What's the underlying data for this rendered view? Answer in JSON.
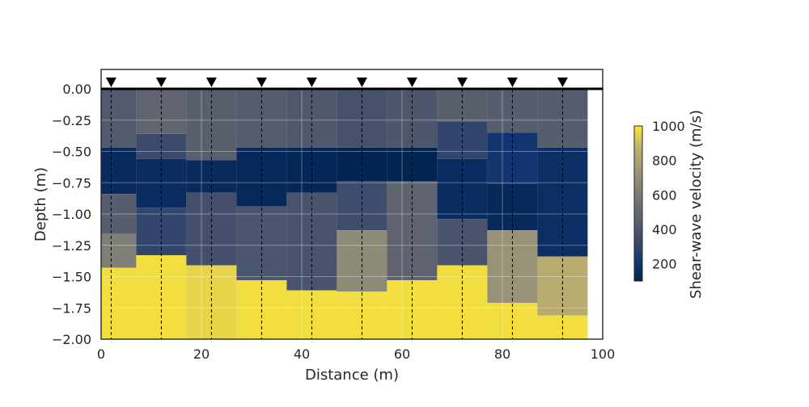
{
  "chart_data": {
    "type": "heatmap",
    "title": "",
    "xlabel": "Distance (m)",
    "ylabel": "Depth (m)",
    "xlim": [
      0,
      100
    ],
    "ylim": [
      -2.0,
      0.0
    ],
    "x_ticks": [
      0,
      20,
      40,
      60,
      80,
      100
    ],
    "x_tick_labels": [
      "0",
      "20",
      "40",
      "60",
      "80",
      "100"
    ],
    "y_ticks": [
      0.0,
      -0.25,
      -0.5,
      -0.75,
      -1.0,
      -1.25,
      -1.5,
      -1.75,
      -2.0
    ],
    "y_tick_labels": [
      "0.00",
      "−0.25",
      "−0.50",
      "−0.75",
      "−1.00",
      "−1.25",
      "−1.50",
      "−1.75",
      "−2.00"
    ],
    "grid": true,
    "colormap": "cividis",
    "colorbar": {
      "label": "Shear-wave velocity (m/s)",
      "range": [
        100,
        1000
      ],
      "ticks": [
        200,
        400,
        600,
        800,
        1000
      ],
      "tick_labels": [
        "200",
        "400",
        "600",
        "800",
        "1000"
      ]
    },
    "column_width_m": 10,
    "stations": {
      "marker": "▼",
      "x": [
        2,
        12,
        22,
        32,
        42,
        52,
        62,
        72,
        82,
        92
      ]
    },
    "profiles": [
      {
        "x_center": 2,
        "layers": [
          {
            "top": 0.0,
            "bottom": -0.47,
            "vs": 420
          },
          {
            "top": -0.47,
            "bottom": -0.84,
            "vs": 150
          },
          {
            "top": -0.84,
            "bottom": -1.16,
            "vs": 440
          },
          {
            "top": -1.16,
            "bottom": -1.43,
            "vs": 620
          },
          {
            "top": -1.43,
            "bottom": -2.0,
            "vs": 980
          }
        ]
      },
      {
        "x_center": 12,
        "layers": [
          {
            "top": 0.0,
            "bottom": -0.36,
            "vs": 480
          },
          {
            "top": -0.36,
            "bottom": -0.56,
            "vs": 330
          },
          {
            "top": -0.56,
            "bottom": -0.95,
            "vs": 160
          },
          {
            "top": -0.95,
            "bottom": -1.33,
            "vs": 300
          },
          {
            "top": -1.33,
            "bottom": -2.0,
            "vs": 980
          }
        ]
      },
      {
        "x_center": 22,
        "layers": [
          {
            "top": 0.0,
            "bottom": -0.57,
            "vs": 450
          },
          {
            "top": -0.57,
            "bottom": -0.83,
            "vs": 150
          },
          {
            "top": -0.83,
            "bottom": -1.41,
            "vs": 360
          },
          {
            "top": -1.41,
            "bottom": -2.0,
            "vs": 960
          }
        ]
      },
      {
        "x_center": 32,
        "layers": [
          {
            "top": 0.0,
            "bottom": -0.47,
            "vs": 430
          },
          {
            "top": -0.47,
            "bottom": -0.94,
            "vs": 140
          },
          {
            "top": -0.94,
            "bottom": -1.53,
            "vs": 390
          },
          {
            "top": -1.53,
            "bottom": -2.0,
            "vs": 980
          }
        ]
      },
      {
        "x_center": 42,
        "layers": [
          {
            "top": 0.0,
            "bottom": -0.47,
            "vs": 410
          },
          {
            "top": -0.47,
            "bottom": -0.83,
            "vs": 130
          },
          {
            "top": -0.83,
            "bottom": -1.61,
            "vs": 380
          },
          {
            "top": -1.61,
            "bottom": -2.0,
            "vs": 980
          }
        ]
      },
      {
        "x_center": 52,
        "layers": [
          {
            "top": 0.0,
            "bottom": -0.47,
            "vs": 370
          },
          {
            "top": -0.47,
            "bottom": -0.74,
            "vs": 110
          },
          {
            "top": -0.74,
            "bottom": -1.13,
            "vs": 340
          },
          {
            "top": -1.13,
            "bottom": -1.62,
            "vs": 680
          },
          {
            "top": -1.62,
            "bottom": -2.0,
            "vs": 980
          }
        ]
      },
      {
        "x_center": 62,
        "layers": [
          {
            "top": 0.0,
            "bottom": -0.47,
            "vs": 400
          },
          {
            "top": -0.47,
            "bottom": -0.74,
            "vs": 110
          },
          {
            "top": -0.74,
            "bottom": -1.53,
            "vs": 470
          },
          {
            "top": -1.53,
            "bottom": -2.0,
            "vs": 980
          }
        ]
      },
      {
        "x_center": 72,
        "layers": [
          {
            "top": 0.0,
            "bottom": -0.26,
            "vs": 450
          },
          {
            "top": -0.26,
            "bottom": -0.56,
            "vs": 300
          },
          {
            "top": -0.56,
            "bottom": -1.04,
            "vs": 160
          },
          {
            "top": -1.04,
            "bottom": -1.41,
            "vs": 380
          },
          {
            "top": -1.41,
            "bottom": -2.0,
            "vs": 980
          }
        ]
      },
      {
        "x_center": 82,
        "layers": [
          {
            "top": 0.0,
            "bottom": -0.35,
            "vs": 440
          },
          {
            "top": -0.35,
            "bottom": -0.76,
            "vs": 210
          },
          {
            "top": -0.76,
            "bottom": -1.13,
            "vs": 140
          },
          {
            "top": -1.13,
            "bottom": -1.71,
            "vs": 720
          },
          {
            "top": -1.71,
            "bottom": -2.0,
            "vs": 980
          }
        ]
      },
      {
        "x_center": 92,
        "layers": [
          {
            "top": 0.0,
            "bottom": -0.47,
            "vs": 430
          },
          {
            "top": -0.47,
            "bottom": -1.34,
            "vs": 170
          },
          {
            "top": -1.34,
            "bottom": -1.81,
            "vs": 840
          },
          {
            "top": -1.81,
            "bottom": -2.0,
            "vs": 980
          }
        ]
      }
    ]
  }
}
